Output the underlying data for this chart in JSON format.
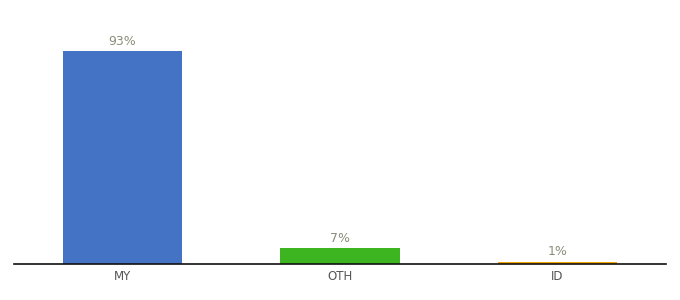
{
  "categories": [
    "MY",
    "OTH",
    "ID"
  ],
  "values": [
    93,
    7,
    1
  ],
  "bar_colors": [
    "#4472c4",
    "#3cb521",
    "#f0a500"
  ],
  "label_color": "#8c8c7a",
  "bar_labels": [
    "93%",
    "7%",
    "1%"
  ],
  "ylim": [
    0,
    105
  ],
  "background_color": "#ffffff",
  "label_fontsize": 9,
  "tick_fontsize": 8.5,
  "bar_width": 0.55,
  "xlim": [
    -0.5,
    2.5
  ]
}
